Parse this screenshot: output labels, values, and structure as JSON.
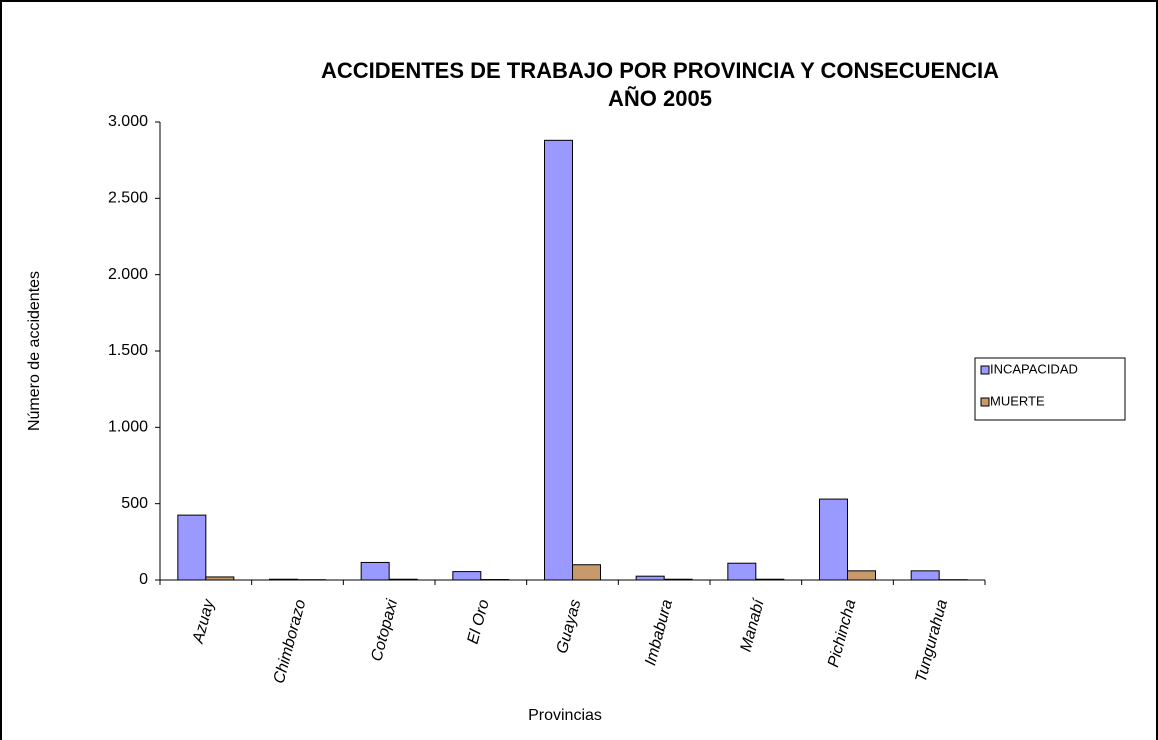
{
  "chart_data": {
    "type": "bar",
    "title": [
      "ACCIDENTES DE TRABAJO POR PROVINCIA Y CONSECUENCIA",
      "AÑO 2005"
    ],
    "x_label": "Provincias",
    "y_label": "Número de accidentes",
    "categories": [
      "Azuay",
      "Chimborazo",
      "Cotopaxi",
      "El Oro",
      "Guayas",
      "Imbabura",
      "Manabí",
      "Pichincha",
      "Tungurahua"
    ],
    "series": [
      {
        "name": "INCAPACIDAD",
        "color": "#9999ff",
        "values": [
          425,
          5,
          115,
          55,
          2880,
          25,
          110,
          530,
          60
        ]
      },
      {
        "name": "MUERTE",
        "color": "#c8996b",
        "values": [
          20,
          2,
          5,
          3,
          100,
          5,
          5,
          60,
          2
        ]
      }
    ],
    "ylim": [
      0,
      3000
    ],
    "yticks": [
      0,
      500,
      {
        "value": 1000,
        "label": "1.000"
      },
      {
        "value": 1500,
        "label": "1.500"
      },
      {
        "value": 2000,
        "label": "2.000"
      },
      {
        "value": 2500,
        "label": "2.500"
      },
      {
        "value": 3000,
        "label": "3.000"
      }
    ],
    "legend": "right"
  }
}
